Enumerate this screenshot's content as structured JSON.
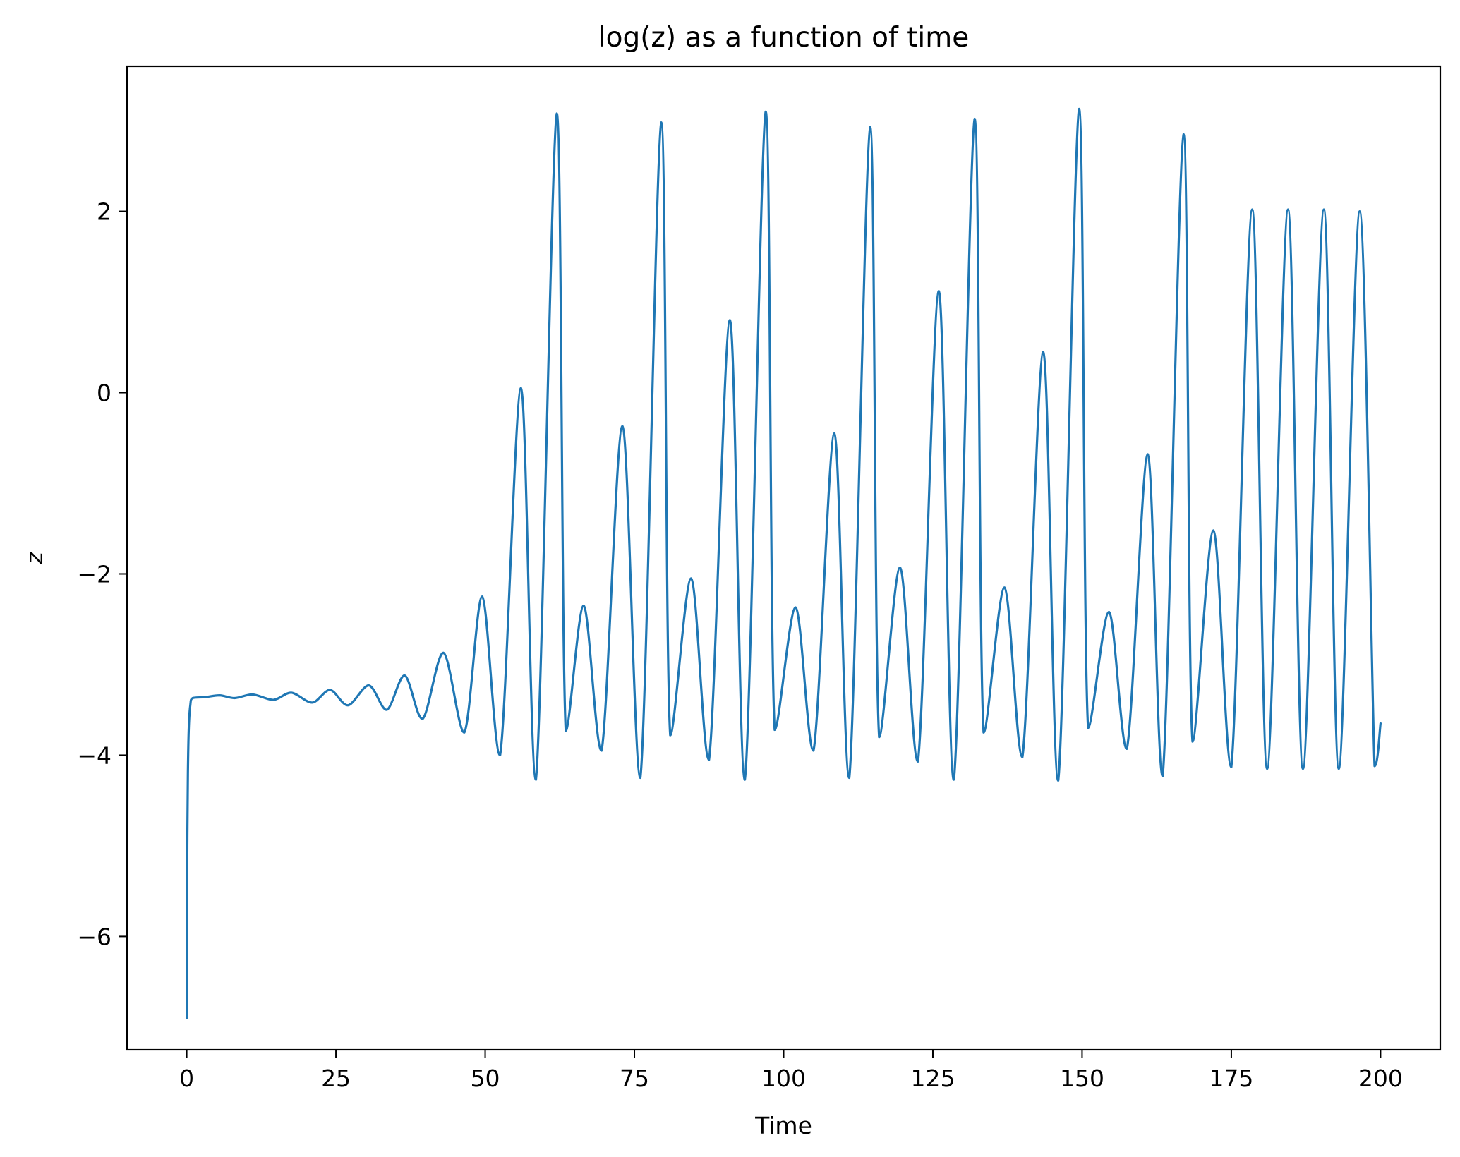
{
  "chart_data": {
    "type": "line",
    "title": "log(z) as a function of time",
    "xlabel": "Time",
    "ylabel": "z",
    "xlim": [
      -10,
      210
    ],
    "ylim": [
      -7.25,
      3.6
    ],
    "xticks": [
      0,
      25,
      50,
      75,
      100,
      125,
      150,
      175,
      200
    ],
    "xtick_labels": [
      "0",
      "25",
      "50",
      "75",
      "100",
      "125",
      "150",
      "175",
      "200"
    ],
    "yticks": [
      -6,
      -4,
      -2,
      0,
      2
    ],
    "ytick_labels": [
      "−6",
      "−4",
      "−2",
      "0",
      "2"
    ],
    "grid": false,
    "legend": "none",
    "series": [
      {
        "color": "#1f77b4",
        "points": [
          [
            0.0,
            -6.9
          ],
          [
            0.05,
            -6.0
          ],
          [
            0.1,
            -5.0
          ],
          [
            0.2,
            -4.2
          ],
          [
            0.35,
            -3.7
          ],
          [
            0.6,
            -3.45
          ],
          [
            1.0,
            -3.37
          ],
          [
            3.0,
            -3.36
          ],
          [
            5.5,
            -3.34
          ],
          [
            8.0,
            -3.37
          ],
          [
            11.0,
            -3.33
          ],
          [
            14.5,
            -3.39
          ],
          [
            17.5,
            -3.31
          ],
          [
            21.0,
            -3.42
          ],
          [
            24.0,
            -3.28
          ],
          [
            27.0,
            -3.45
          ],
          [
            30.5,
            -3.23
          ],
          [
            33.5,
            -3.5
          ],
          [
            36.5,
            -3.12
          ],
          [
            39.5,
            -3.6
          ],
          [
            43.0,
            -2.87
          ],
          [
            46.5,
            -3.75
          ],
          [
            49.5,
            -2.25
          ],
          [
            52.5,
            -4.0
          ],
          [
            56.0,
            0.05
          ],
          [
            58.5,
            -4.27
          ],
          [
            62.0,
            3.08
          ],
          [
            63.5,
            -3.73
          ],
          [
            66.5,
            -2.35
          ],
          [
            69.5,
            -3.95
          ],
          [
            73.0,
            -0.37
          ],
          [
            76.0,
            -4.25
          ],
          [
            79.5,
            2.98
          ],
          [
            81.0,
            -3.78
          ],
          [
            84.5,
            -2.05
          ],
          [
            87.5,
            -4.05
          ],
          [
            91.0,
            0.8
          ],
          [
            93.5,
            -4.27
          ],
          [
            97.0,
            3.1
          ],
          [
            98.5,
            -3.72
          ],
          [
            102.0,
            -2.37
          ],
          [
            105.0,
            -3.95
          ],
          [
            108.5,
            -0.45
          ],
          [
            111.0,
            -4.25
          ],
          [
            114.5,
            2.93
          ],
          [
            116.0,
            -3.8
          ],
          [
            119.5,
            -1.93
          ],
          [
            122.5,
            -4.07
          ],
          [
            126.0,
            1.12
          ],
          [
            128.5,
            -4.27
          ],
          [
            132.0,
            3.02
          ],
          [
            133.5,
            -3.75
          ],
          [
            137.0,
            -2.15
          ],
          [
            140.0,
            -4.02
          ],
          [
            143.5,
            0.45
          ],
          [
            146.0,
            -4.28
          ],
          [
            149.5,
            3.13
          ],
          [
            151.0,
            -3.7
          ],
          [
            154.5,
            -2.42
          ],
          [
            157.5,
            -3.93
          ],
          [
            161.0,
            -0.68
          ],
          [
            163.5,
            -4.23
          ],
          [
            167.0,
            2.85
          ],
          [
            168.5,
            -3.85
          ],
          [
            172.0,
            -1.52
          ],
          [
            175.0,
            -4.13
          ],
          [
            178.5,
            2.02
          ],
          [
            181.0,
            -4.15
          ],
          [
            184.5,
            2.02
          ],
          [
            187.0,
            -4.15
          ],
          [
            190.5,
            2.02
          ],
          [
            193.0,
            -4.15
          ],
          [
            196.5,
            2.0
          ],
          [
            199.0,
            -4.12
          ],
          [
            200.0,
            -3.65
          ]
        ]
      }
    ]
  }
}
